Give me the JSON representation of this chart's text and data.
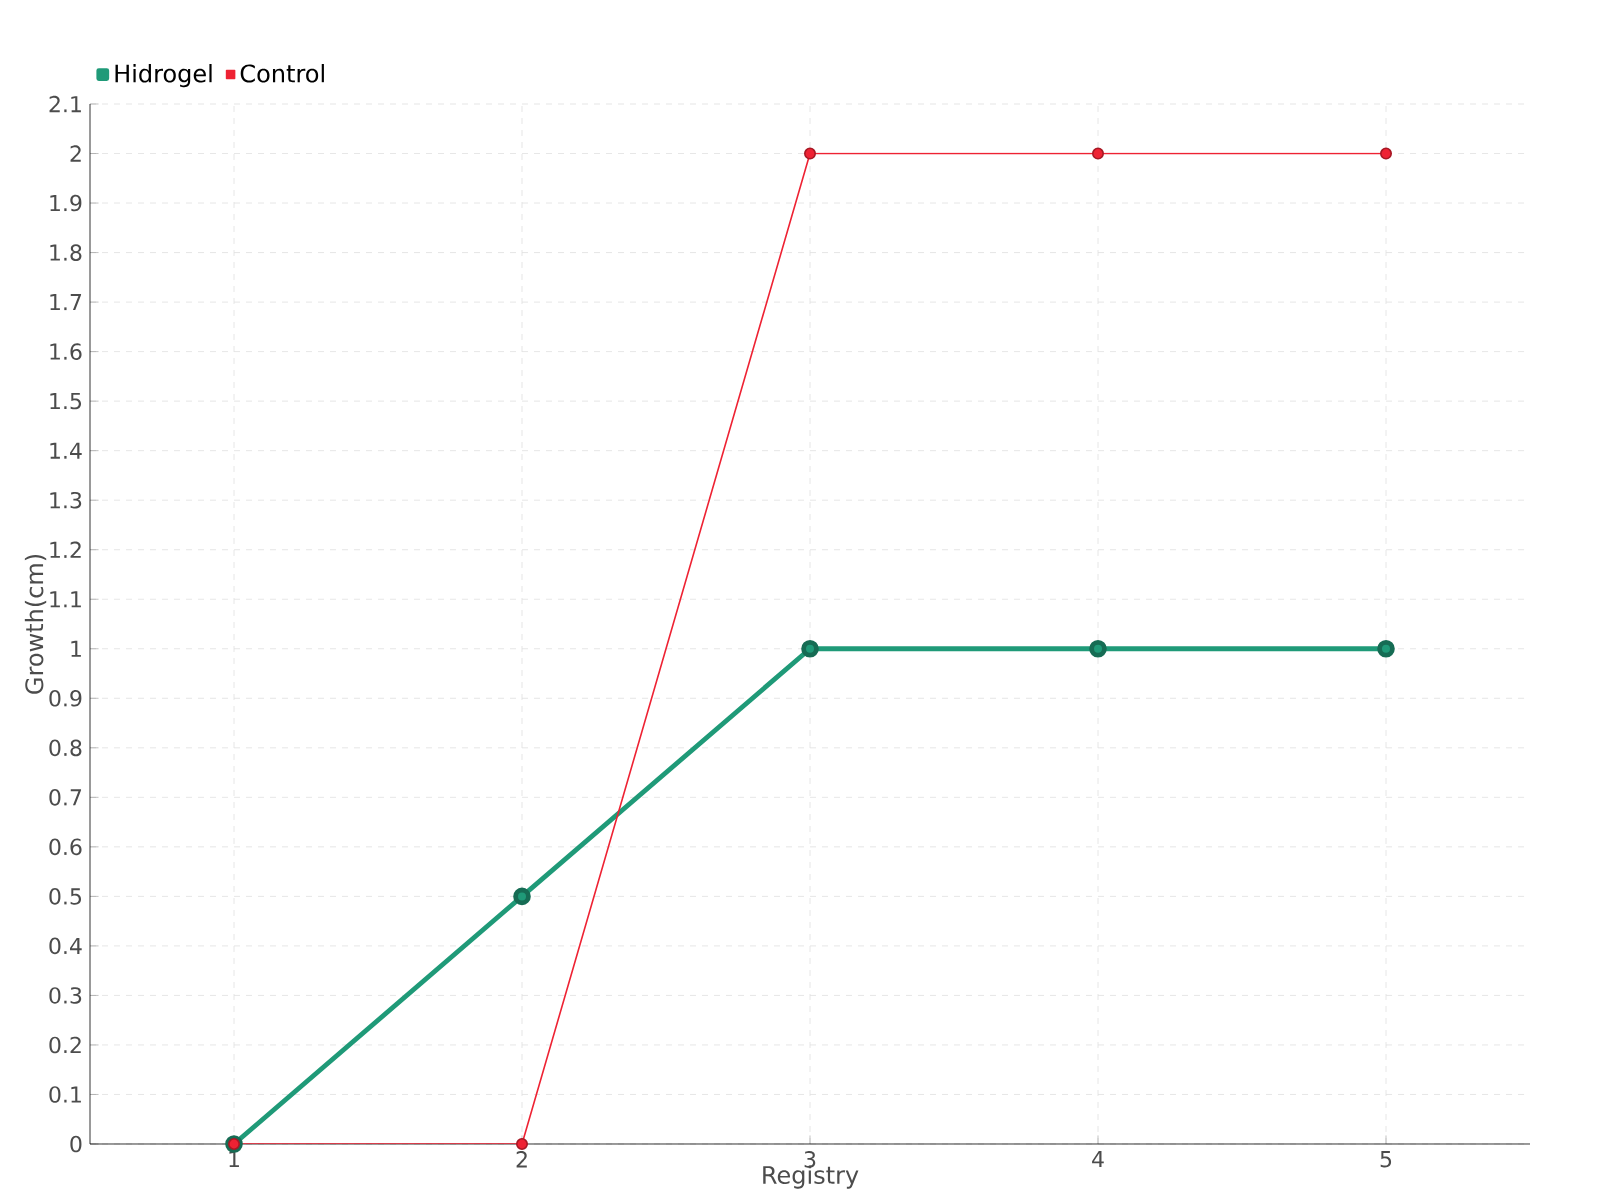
{
  "chart_data": {
    "type": "line",
    "xlabel": "Registry",
    "ylabel": "Growth(cm)",
    "x": [
      1,
      2,
      3,
      4,
      5
    ],
    "series": [
      {
        "name": "Hidrogel",
        "color": "#1f9a78",
        "values": [
          0,
          0.5,
          1,
          1,
          1
        ]
      },
      {
        "name": "Control",
        "color": "#ee2233",
        "values": [
          0,
          0,
          2,
          2,
          2
        ]
      }
    ],
    "xlim": [
      0.5,
      5.5
    ],
    "xticks": [
      1,
      2,
      3,
      4,
      5
    ],
    "ylim": [
      0,
      2.1
    ],
    "yticks": [
      0,
      0.1,
      0.2,
      0.3,
      0.4,
      0.5,
      0.6,
      0.7,
      0.8,
      0.9,
      1,
      1.1,
      1.2,
      1.3,
      1.4,
      1.5,
      1.6,
      1.7,
      1.8,
      1.9,
      2,
      2.1
    ],
    "grid": true,
    "legend": "top left",
    "marker": "circle",
    "line_style": "solid"
  }
}
